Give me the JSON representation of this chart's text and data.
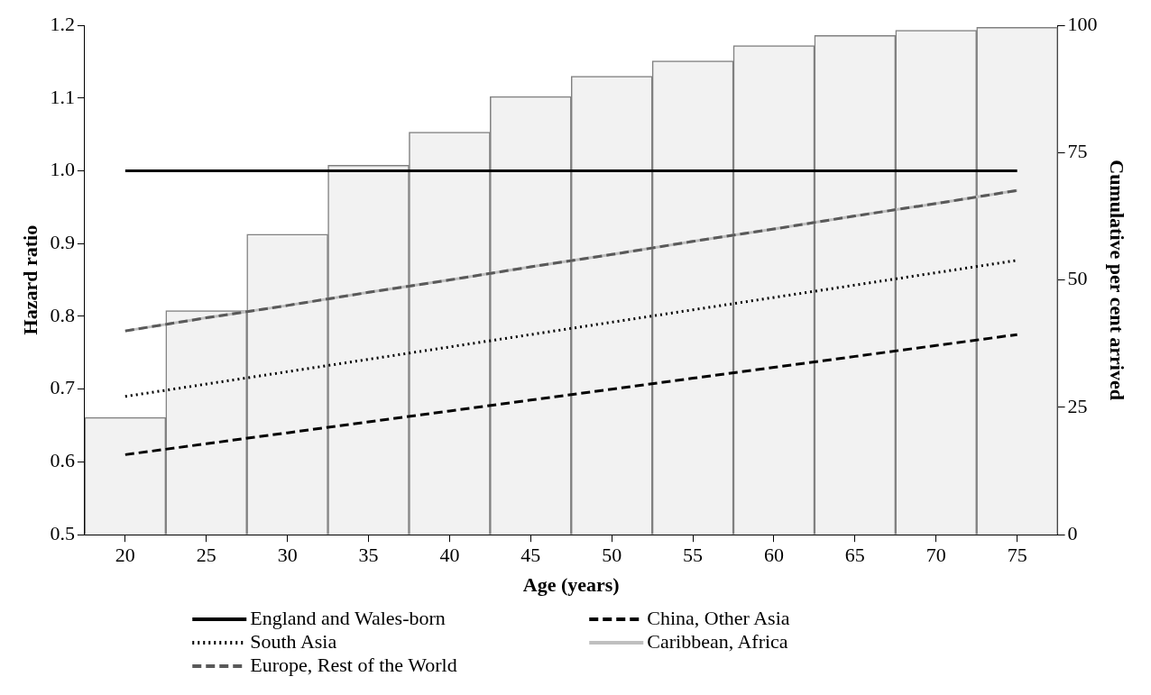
{
  "chart_data": {
    "type": "line",
    "xlabel": "Age (years)",
    "ylabel": "Hazard ratio",
    "y2label": "Cumulative per cent arrived",
    "categories": [
      "20",
      "25",
      "30",
      "35",
      "40",
      "45",
      "50",
      "55",
      "60",
      "65",
      "70",
      "75"
    ],
    "ylim": [
      0.5,
      1.2
    ],
    "yticks": [
      0.5,
      0.6,
      0.7,
      0.8,
      0.9,
      {
        "value": 1,
        "label": "1.0"
      },
      1.1,
      1.2
    ],
    "y2lim": [
      0,
      100
    ],
    "y2ticks": [
      0,
      25,
      50,
      75,
      100
    ],
    "grid": false,
    "legend": "bottom",
    "marker": "none",
    "series": [
      {
        "type": "bar",
        "axis": "y2",
        "color": "#f2f2f2",
        "values": [
          23,
          44,
          59,
          72.5,
          79,
          86,
          90,
          93,
          96,
          98,
          99,
          99.6
        ]
      },
      {
        "name": "England and Wales-born",
        "axis": "y",
        "color": "#000000",
        "line_style": "solid",
        "values": [
          1,
          1,
          1,
          1,
          1,
          1,
          1,
          1,
          1,
          1,
          1,
          1
        ]
      },
      {
        "name": "China, Other Asia",
        "axis": "y",
        "color": "#000000",
        "line_style": "dashed",
        "values": [
          0.61,
          0.625,
          0.64,
          0.655,
          0.67,
          0.685,
          0.7,
          0.715,
          0.73,
          0.745,
          0.76,
          0.775
        ]
      },
      {
        "name": "South Asia",
        "axis": "y",
        "color": "#000000",
        "line_style": "dotted",
        "values": [
          0.69,
          0.707,
          0.724,
          0.741,
          0.758,
          0.775,
          0.792,
          0.809,
          0.826,
          0.843,
          0.86,
          0.877
        ]
      },
      {
        "name": "Caribbean, Africa",
        "axis": "y",
        "color": "#bfbfbf",
        "line_style": "solid",
        "values": [
          0.78,
          0.798,
          0.815,
          0.833,
          0.85,
          0.868,
          0.885,
          0.903,
          0.92,
          0.938,
          0.955,
          0.973
        ]
      },
      {
        "name": "Europe, Rest of the World",
        "axis": "y",
        "color": "#595959",
        "line_style": "dashed",
        "values": [
          0.78,
          0.798,
          0.815,
          0.833,
          0.85,
          0.868,
          0.885,
          0.903,
          0.92,
          0.938,
          0.955,
          0.973
        ]
      }
    ]
  }
}
